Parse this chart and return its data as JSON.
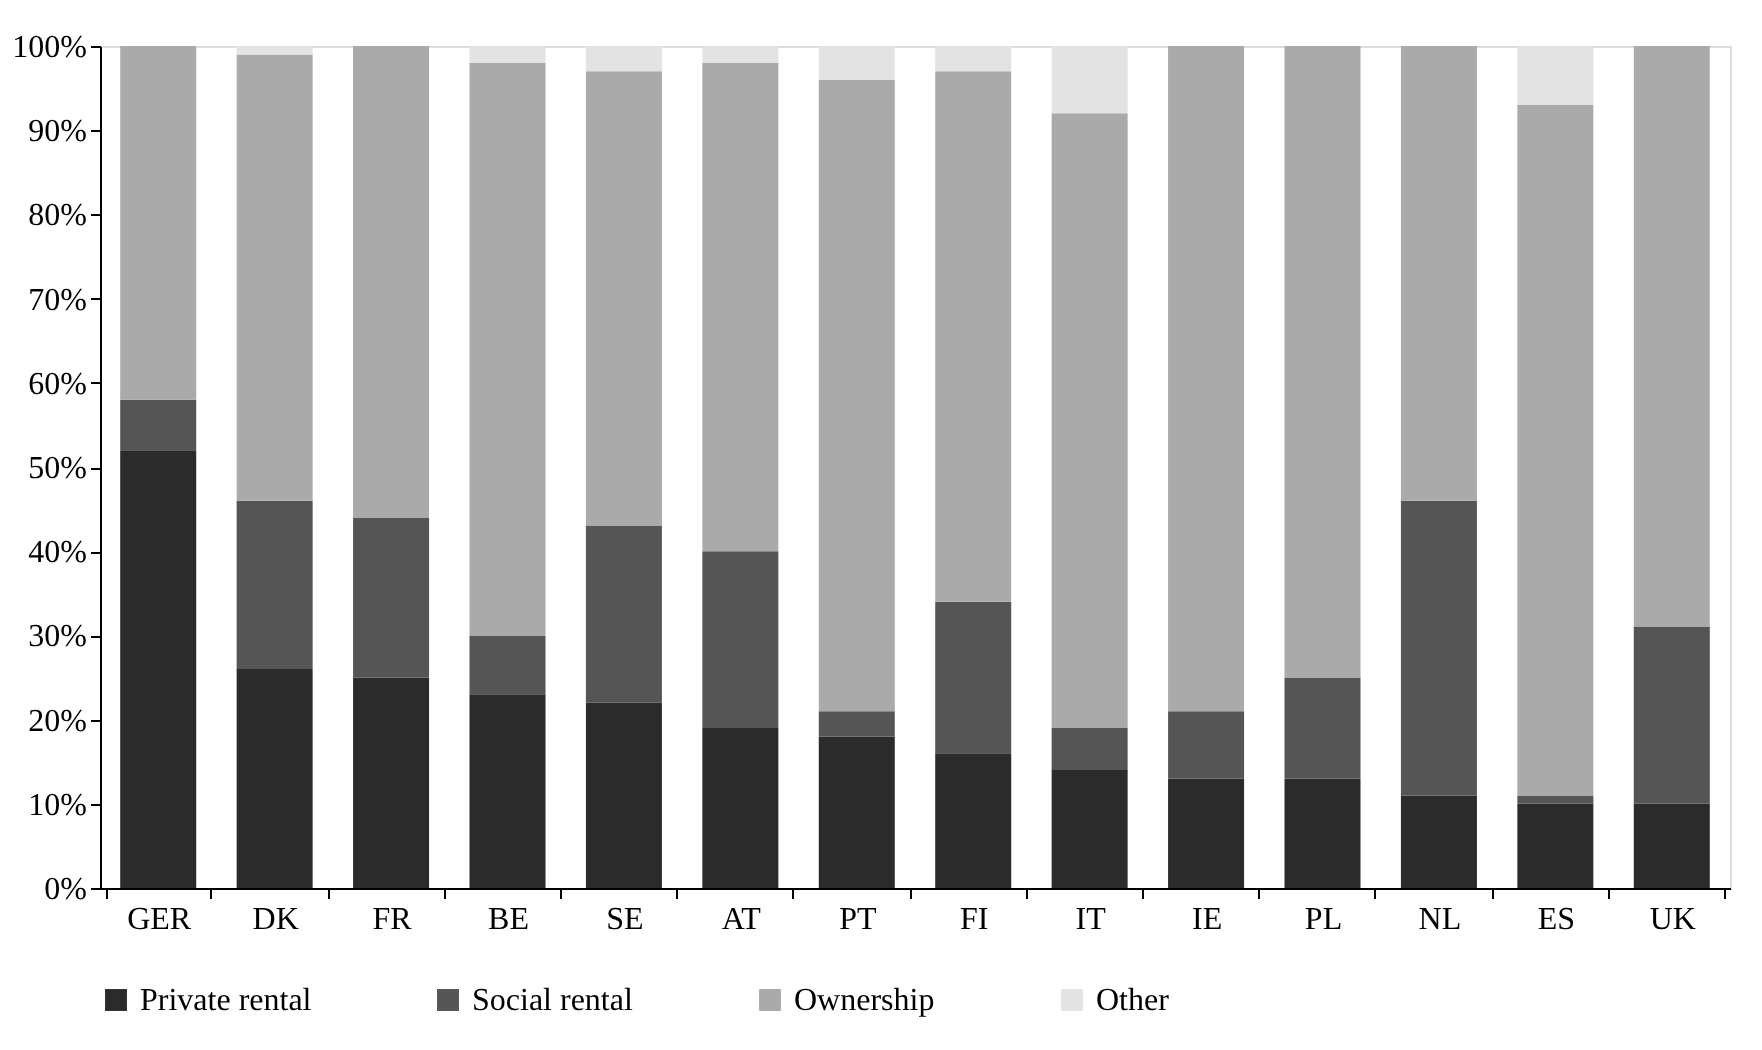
{
  "chart_data": {
    "type": "bar",
    "stacked": true,
    "categories": [
      "GER",
      "DK",
      "FR",
      "BE",
      "SE",
      "AT",
      "PT",
      "FI",
      "IT",
      "IE",
      "PL",
      "NL",
      "ES",
      "UK"
    ],
    "series": [
      {
        "name": "Private rental",
        "color": "#2b2b2b",
        "values": [
          52,
          26,
          25,
          23,
          22,
          19,
          18,
          16,
          14,
          13,
          13,
          11,
          10,
          10
        ]
      },
      {
        "name": "Social rental",
        "color": "#555555",
        "values": [
          6,
          20,
          19,
          7,
          21,
          21,
          3,
          18,
          5,
          8,
          12,
          35,
          1,
          21
        ]
      },
      {
        "name": "Ownership",
        "color": "#aaaaaa",
        "values": [
          42,
          53,
          56,
          68,
          54,
          58,
          75,
          63,
          73,
          79,
          75,
          54,
          82,
          69
        ]
      },
      {
        "name": "Other",
        "color": "#e3e3e3",
        "values": [
          0,
          1,
          0,
          2,
          3,
          2,
          4,
          3,
          8,
          0,
          0,
          0,
          7,
          0
        ]
      }
    ],
    "ylim": [
      0,
      100
    ],
    "yticks": [
      {
        "value": 0,
        "label": "0%"
      },
      {
        "value": 10,
        "label": "10%"
      },
      {
        "value": 20,
        "label": "20%"
      },
      {
        "value": 30,
        "label": "30%"
      },
      {
        "value": 40,
        "label": "40%"
      },
      {
        "value": 50,
        "label": "50%"
      },
      {
        "value": 60,
        "label": "60%"
      },
      {
        "value": 70,
        "label": "70%"
      },
      {
        "value": 80,
        "label": "80%"
      },
      {
        "value": 90,
        "label": "90%"
      },
      {
        "value": 100,
        "label": "100%"
      }
    ],
    "grid": false,
    "legend": "bottom"
  }
}
